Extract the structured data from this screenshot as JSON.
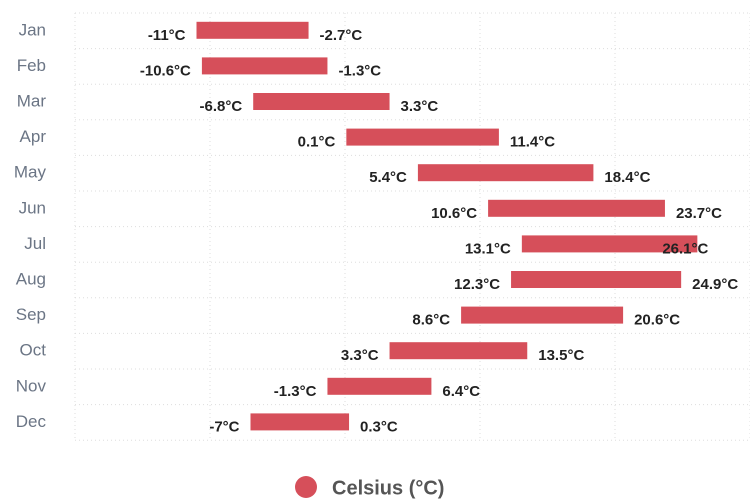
{
  "chart_data": {
    "type": "range-bar",
    "categories": [
      "Jan",
      "Feb",
      "Mar",
      "Apr",
      "May",
      "Jun",
      "Jul",
      "Aug",
      "Sep",
      "Oct",
      "Nov",
      "Dec"
    ],
    "series": [
      {
        "name": "Celsius (°C)",
        "color": "#d64f5a",
        "values": [
          [
            -11,
            -2.7
          ],
          [
            -10.6,
            -1.3
          ],
          [
            -6.8,
            3.3
          ],
          [
            0.1,
            11.4
          ],
          [
            5.4,
            18.4
          ],
          [
            10.6,
            23.7
          ],
          [
            13.1,
            26.1
          ],
          [
            12.3,
            24.9
          ],
          [
            8.6,
            20.6
          ],
          [
            3.3,
            13.5
          ],
          [
            -1.3,
            6.4
          ],
          [
            -7,
            0.3
          ]
        ],
        "value_labels": [
          [
            "-11°C",
            "-2.7°C"
          ],
          [
            "-10.6°C",
            "-1.3°C"
          ],
          [
            "-6.8°C",
            "3.3°C"
          ],
          [
            "0.1°C",
            "11.4°C"
          ],
          [
            "5.4°C",
            "18.4°C"
          ],
          [
            "10.6°C",
            "23.7°C"
          ],
          [
            "13.1°C",
            "26.1°C"
          ],
          [
            "12.3°C",
            "24.9°C"
          ],
          [
            "8.6°C",
            "20.6°C"
          ],
          [
            "3.3°C",
            "13.5°C"
          ],
          [
            "-1.3°C",
            "6.4°C"
          ],
          [
            "-7°C",
            "0.3°C"
          ]
        ]
      }
    ],
    "xlim": [
      -20,
      30
    ],
    "xticks": [
      -20,
      -10,
      0,
      10,
      20,
      30
    ],
    "grid": true,
    "legend": "bottom"
  }
}
